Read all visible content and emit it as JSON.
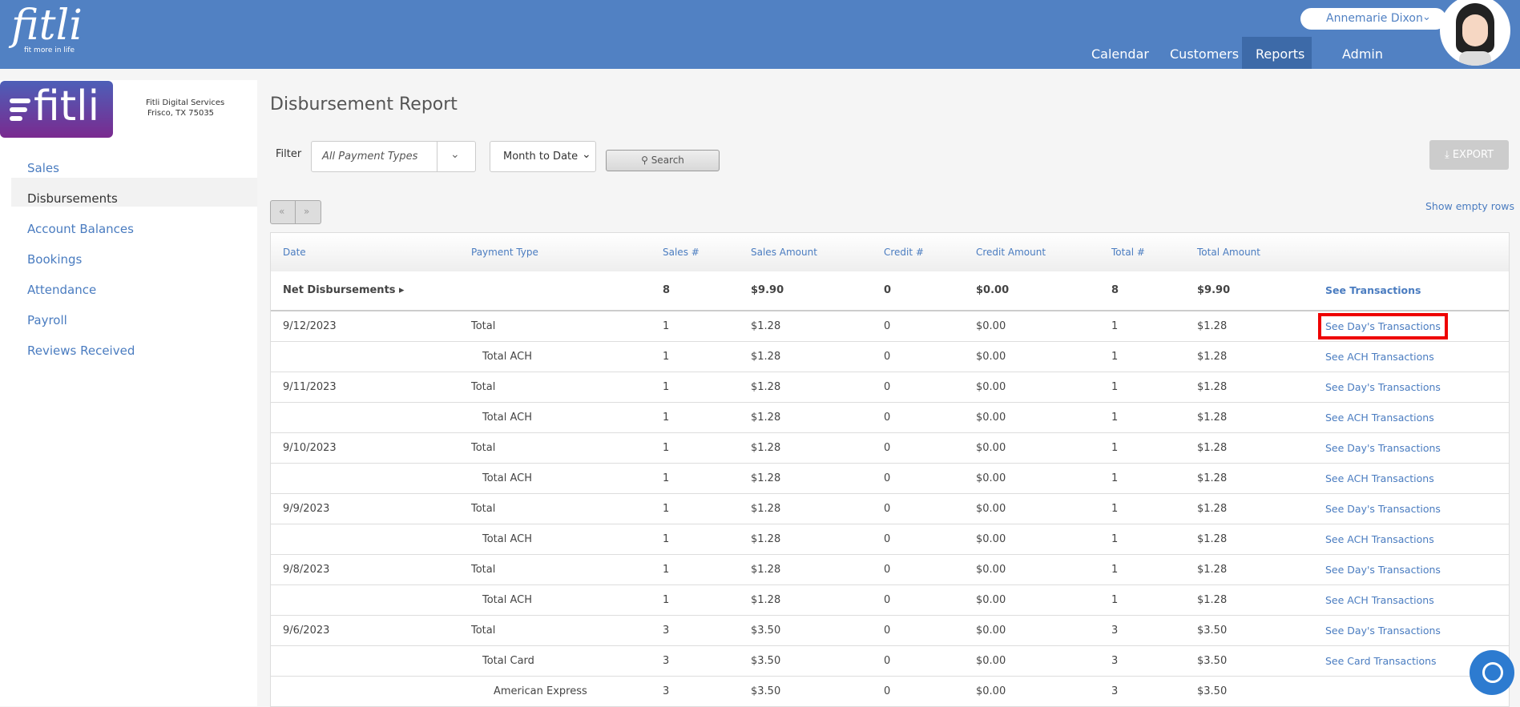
{
  "header": {
    "logo": "fitli",
    "tagline": "fit more in life",
    "user": "Annemarie Dixon",
    "nav": [
      "Calendar",
      "Customers",
      "Reports",
      "Admin"
    ]
  },
  "sidebar": {
    "logo": "fitli",
    "company": "Fitli Digital Services",
    "address": "Frisco, TX 75035",
    "menu": [
      "Sales",
      "Disbursements",
      "Account Balances",
      "Bookings",
      "Attendance",
      "Payroll",
      "Reviews Received"
    ]
  },
  "report": {
    "title": "Disbursement Report",
    "filter_label": "Filter",
    "payment_types": "All Payment Types",
    "period": "Month to Date",
    "search": "Search",
    "export": "EXPORT",
    "show_empty": "Show empty rows",
    "prev": "«",
    "next": "»"
  },
  "table": {
    "columns": [
      "Date",
      "Payment Type",
      "Sales #",
      "Sales Amount",
      "Credit #",
      "Credit Amount",
      "Total #",
      "Total Amount"
    ],
    "summary": [
      "Net Disbursements",
      8,
      "$9.90",
      0,
      "$0.00",
      8,
      "$9.90",
      "See Transactions"
    ],
    "rows": [
      [
        "9/12/2023",
        "Total",
        1,
        "$1.28",
        0,
        "$0.00",
        1,
        "$1.28",
        "See Day's Transactions"
      ],
      [
        null,
        "Total ACH",
        1,
        "$1.28",
        0,
        "$0.00",
        1,
        "$1.28",
        "See ACH Transactions"
      ],
      [
        "9/11/2023",
        "Total",
        1,
        "$1.28",
        0,
        "$0.00",
        1,
        "$1.28",
        "See Day's Transactions"
      ],
      [
        null,
        "Total ACH",
        1,
        "$1.28",
        0,
        "$0.00",
        1,
        "$1.28",
        "See ACH Transactions"
      ],
      [
        "9/10/2023",
        "Total",
        1,
        "$1.28",
        0,
        "$0.00",
        1,
        "$1.28",
        "See Day's Transactions"
      ],
      [
        null,
        "Total ACH",
        1,
        "$1.28",
        0,
        "$0.00",
        1,
        "$1.28",
        "See ACH Transactions"
      ],
      [
        "9/9/2023",
        "Total",
        1,
        "$1.28",
        0,
        "$0.00",
        1,
        "$1.28",
        "See Day's Transactions"
      ],
      [
        null,
        "Total ACH",
        1,
        "$1.28",
        0,
        "$0.00",
        1,
        "$1.28",
        "See ACH Transactions"
      ],
      [
        "9/8/2023",
        "Total",
        1,
        "$1.28",
        0,
        "$0.00",
        1,
        "$1.28",
        "See Day's Transactions"
      ],
      [
        null,
        "Total ACH",
        1,
        "$1.28",
        0,
        "$0.00",
        1,
        "$1.28",
        "See ACH Transactions"
      ],
      [
        "9/6/2023",
        "Total",
        3,
        "$3.50",
        0,
        "$0.00",
        3,
        "$3.50",
        "See Day's Transactions"
      ],
      [
        null,
        "Total Card",
        3,
        "$3.50",
        0,
        "$0.00",
        3,
        "$3.50",
        "See Card Transactions"
      ],
      [
        null,
        "American Express",
        3,
        "$3.50",
        0,
        "$0.00",
        3,
        "$3.50",
        null
      ]
    ]
  }
}
